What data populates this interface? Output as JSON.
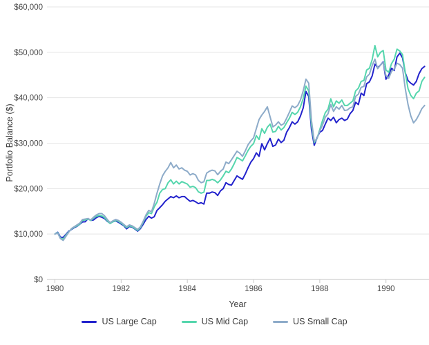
{
  "chart_data": {
    "type": "line",
    "title": "",
    "xlabel": "Year",
    "ylabel": "Portfolio Balance ($)",
    "x_unit": "monthly from January 1980 to March 1991",
    "x_start_year": 1980,
    "x_step_months": 1,
    "xlim": [
      1979.76,
      1991.3
    ],
    "ylim": [
      0,
      60000
    ],
    "x_ticks": [
      1980,
      1982,
      1984,
      1986,
      1988,
      1990
    ],
    "x_tick_labels": [
      "1980",
      "1982",
      "1984",
      "1986",
      "1988",
      "1990"
    ],
    "y_ticks": [
      0,
      10000,
      20000,
      30000,
      40000,
      50000,
      60000
    ],
    "y_tick_labels": [
      "$0",
      "$10,000",
      "$20,000",
      "$30,000",
      "$40,000",
      "$50,000",
      "$60,000"
    ],
    "grid": "horizontal",
    "legend_position": "bottom",
    "background_color": "#ffffff",
    "gridline_color": "#e4e4e4",
    "axisline_color": "#c6c6c6",
    "series": [
      {
        "name": "US Large Cap",
        "color": "#2222cc",
        "values": [
          10000,
          10400,
          9300,
          9270,
          9900,
          10640,
          11000,
          11400,
          11700,
          12160,
          12660,
          12700,
          13400,
          13000,
          13100,
          13600,
          13900,
          13700,
          13400,
          12800,
          12400,
          12700,
          12900,
          12600,
          12200,
          11800,
          11140,
          11660,
          11500,
          11100,
          10640,
          11200,
          12160,
          13180,
          13900,
          13500,
          13800,
          15200,
          15800,
          16460,
          17220,
          17730,
          18240,
          18000,
          18390,
          17980,
          18240,
          18240,
          17700,
          17200,
          17400,
          17100,
          16700,
          16900,
          16600,
          19000,
          19000,
          19260,
          19100,
          18490,
          19500,
          20000,
          21300,
          20900,
          20770,
          21800,
          22800,
          22400,
          22040,
          23200,
          24580,
          25800,
          26600,
          27870,
          27100,
          29890,
          28530,
          29900,
          31050,
          29290,
          29600,
          30900,
          30140,
          30650,
          32420,
          33440,
          34700,
          34200,
          34700,
          35970,
          37750,
          41390,
          40280,
          33000,
          29530,
          31200,
          32400,
          32800,
          34200,
          35500,
          35000,
          35700,
          34500,
          35200,
          35500,
          35000,
          35300,
          36500,
          37200,
          39000,
          38500,
          41000,
          40500,
          43100,
          43500,
          44800,
          47400,
          46600,
          47200,
          47900,
          44080,
          45000,
          46500,
          46000,
          49000,
          49800,
          48800,
          45500,
          43800,
          43200,
          42800,
          43600,
          45300,
          46400,
          46900
        ]
      },
      {
        "name": "US Mid Cap",
        "color": "#55d6ad",
        "values": [
          10000,
          10300,
          9100,
          8900,
          9700,
          10500,
          11100,
          11500,
          11800,
          12200,
          13000,
          13100,
          13300,
          13000,
          13500,
          13900,
          14100,
          14000,
          13600,
          12900,
          12300,
          12700,
          13000,
          12800,
          12400,
          11900,
          11400,
          11800,
          11600,
          11200,
          10800,
          11400,
          12600,
          13900,
          14700,
          14500,
          15960,
          17000,
          19000,
          19800,
          20000,
          21280,
          21940,
          21030,
          21640,
          21030,
          21540,
          21280,
          21000,
          20300,
          20500,
          20200,
          19300,
          19000,
          19200,
          21790,
          21800,
          22040,
          21800,
          21280,
          21900,
          22800,
          23820,
          23500,
          24320,
          25500,
          26850,
          26500,
          26100,
          27200,
          28380,
          29300,
          29890,
          31660,
          30800,
          33180,
          32170,
          33500,
          34200,
          32420,
          32600,
          33700,
          32900,
          33440,
          34500,
          35500,
          36800,
          36300,
          36800,
          38000,
          39800,
          42560,
          41500,
          34000,
          30140,
          31000,
          33000,
          34960,
          36700,
          37500,
          39770,
          38000,
          39300,
          38800,
          39500,
          38300,
          38300,
          38800,
          39300,
          41500,
          42100,
          43600,
          43800,
          46100,
          46500,
          48400,
          51500,
          49000,
          50000,
          50400,
          46100,
          45600,
          47500,
          48500,
          50700,
          50300,
          49500,
          45500,
          42000,
          40500,
          39800,
          41000,
          41500,
          43600,
          44500
        ]
      },
      {
        "name": "US Small Cap",
        "color": "#8dabc9",
        "values": [
          10000,
          10200,
          9000,
          8600,
          9500,
          10400,
          11200,
          11600,
          12000,
          12400,
          13200,
          13300,
          13400,
          13100,
          13700,
          14200,
          14500,
          14500,
          14000,
          13200,
          12500,
          12900,
          13200,
          13000,
          12600,
          12100,
          11600,
          12000,
          11800,
          11400,
          11000,
          11600,
          12800,
          14200,
          15200,
          14900,
          16720,
          19000,
          21030,
          22800,
          23800,
          24580,
          25740,
          24580,
          25180,
          24320,
          24580,
          24060,
          23800,
          23000,
          23300,
          23000,
          21800,
          21300,
          21500,
          23400,
          23820,
          24060,
          23900,
          23060,
          23800,
          24320,
          25840,
          25500,
          26350,
          27300,
          28230,
          27800,
          27100,
          28300,
          29640,
          30500,
          31160,
          33200,
          35210,
          36200,
          37000,
          38000,
          35800,
          33590,
          34000,
          34700,
          33940,
          34300,
          35500,
          36800,
          38200,
          37800,
          38300,
          39500,
          41500,
          44100,
          43200,
          35000,
          30400,
          31000,
          32700,
          34000,
          35700,
          36500,
          38500,
          37000,
          38000,
          37500,
          38300,
          37200,
          37300,
          37800,
          38000,
          40300,
          40800,
          42300,
          42500,
          44600,
          45200,
          47100,
          48500,
          46400,
          47200,
          47800,
          44840,
          44300,
          45800,
          46300,
          47600,
          47300,
          46500,
          42000,
          38500,
          36000,
          34460,
          35200,
          36300,
          37600,
          38300
        ]
      }
    ]
  }
}
